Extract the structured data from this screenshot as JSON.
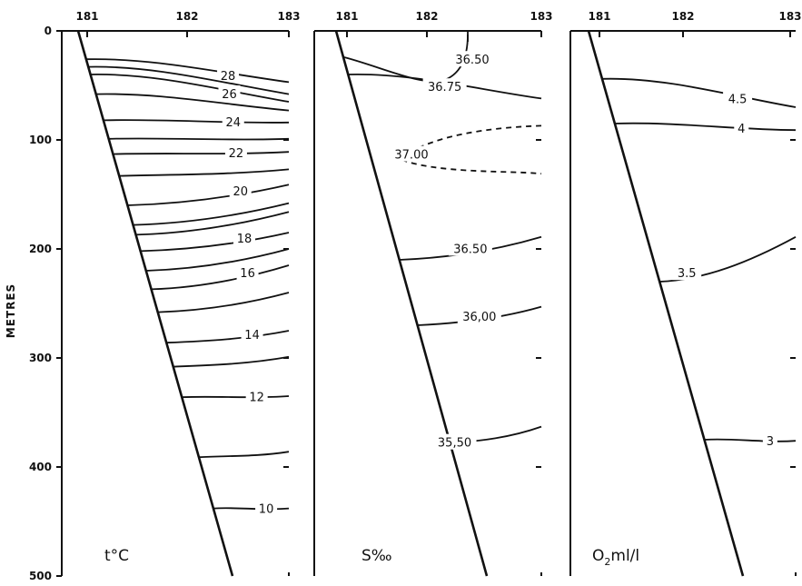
{
  "figure": {
    "ylabel": "METRES",
    "depth_ticks": [
      "0",
      "100",
      "200",
      "300",
      "400",
      "500"
    ],
    "x_ticks": [
      "181",
      "182",
      "183"
    ]
  },
  "panels": [
    {
      "title": "t°C",
      "x_ticks": [
        "181",
        "182",
        "183"
      ],
      "isolines": [
        {
          "label": "28",
          "left_depth": 26,
          "right_depth": 47
        },
        {
          "label": "",
          "left_depth": 33,
          "right_depth": 58
        },
        {
          "label": "26",
          "left_depth": 40,
          "right_depth": 65
        },
        {
          "label": "",
          "left_depth": 58,
          "right_depth": 73
        },
        {
          "label": "24",
          "left_depth": 82,
          "right_depth": 84
        },
        {
          "label": "",
          "left_depth": 99,
          "right_depth": 99
        },
        {
          "label": "22",
          "left_depth": 113,
          "right_depth": 111
        },
        {
          "label": "",
          "left_depth": 133,
          "right_depth": 127
        },
        {
          "label": "20",
          "left_depth": 160,
          "right_depth": 141
        },
        {
          "label": "",
          "left_depth": 178,
          "right_depth": 158
        },
        {
          "label": "",
          "left_depth": 187,
          "right_depth": 166
        },
        {
          "label": "18",
          "left_depth": 202,
          "right_depth": 185
        },
        {
          "label": "",
          "left_depth": 220,
          "right_depth": 200
        },
        {
          "label": "16",
          "left_depth": 237,
          "right_depth": 215
        },
        {
          "label": "",
          "left_depth": 258,
          "right_depth": 240
        },
        {
          "label": "14",
          "left_depth": 286,
          "right_depth": 275
        },
        {
          "label": "",
          "left_depth": 308,
          "right_depth": 299
        },
        {
          "label": "12",
          "left_depth": 336,
          "right_depth": 335
        },
        {
          "label": "",
          "left_depth": 391,
          "right_depth": 386
        },
        {
          "label": "10",
          "left_depth": 438,
          "right_depth": 438
        }
      ]
    },
    {
      "title": "S‰",
      "x_ticks": [
        "181",
        "182",
        "183"
      ],
      "isolines": [
        {
          "label": "36.50",
          "left_depth": 24,
          "right_depth": 0
        },
        {
          "label": "36.75",
          "left_depth": 40,
          "right_depth": 62
        },
        {
          "label": "37.00",
          "left_depth": 105,
          "right_depth": 130
        },
        {
          "label": "36.50",
          "left_depth": 210,
          "right_depth": 189
        },
        {
          "label": "36,00",
          "left_depth": 270,
          "right_depth": 253
        },
        {
          "label": "35,50",
          "left_depth": 378,
          "right_depth": 363
        }
      ]
    },
    {
      "title": "O2ml/l",
      "x_ticks": [
        "181",
        "182",
        "183"
      ],
      "isolines": [
        {
          "label": "4.5",
          "left_depth": 44,
          "right_depth": 70
        },
        {
          "label": "4",
          "left_depth": 85,
          "right_depth": 91
        },
        {
          "label": "3.5",
          "left_depth": 230,
          "right_depth": 189
        },
        {
          "label": "3",
          "left_depth": 375,
          "right_depth": 376
        }
      ]
    }
  ]
}
